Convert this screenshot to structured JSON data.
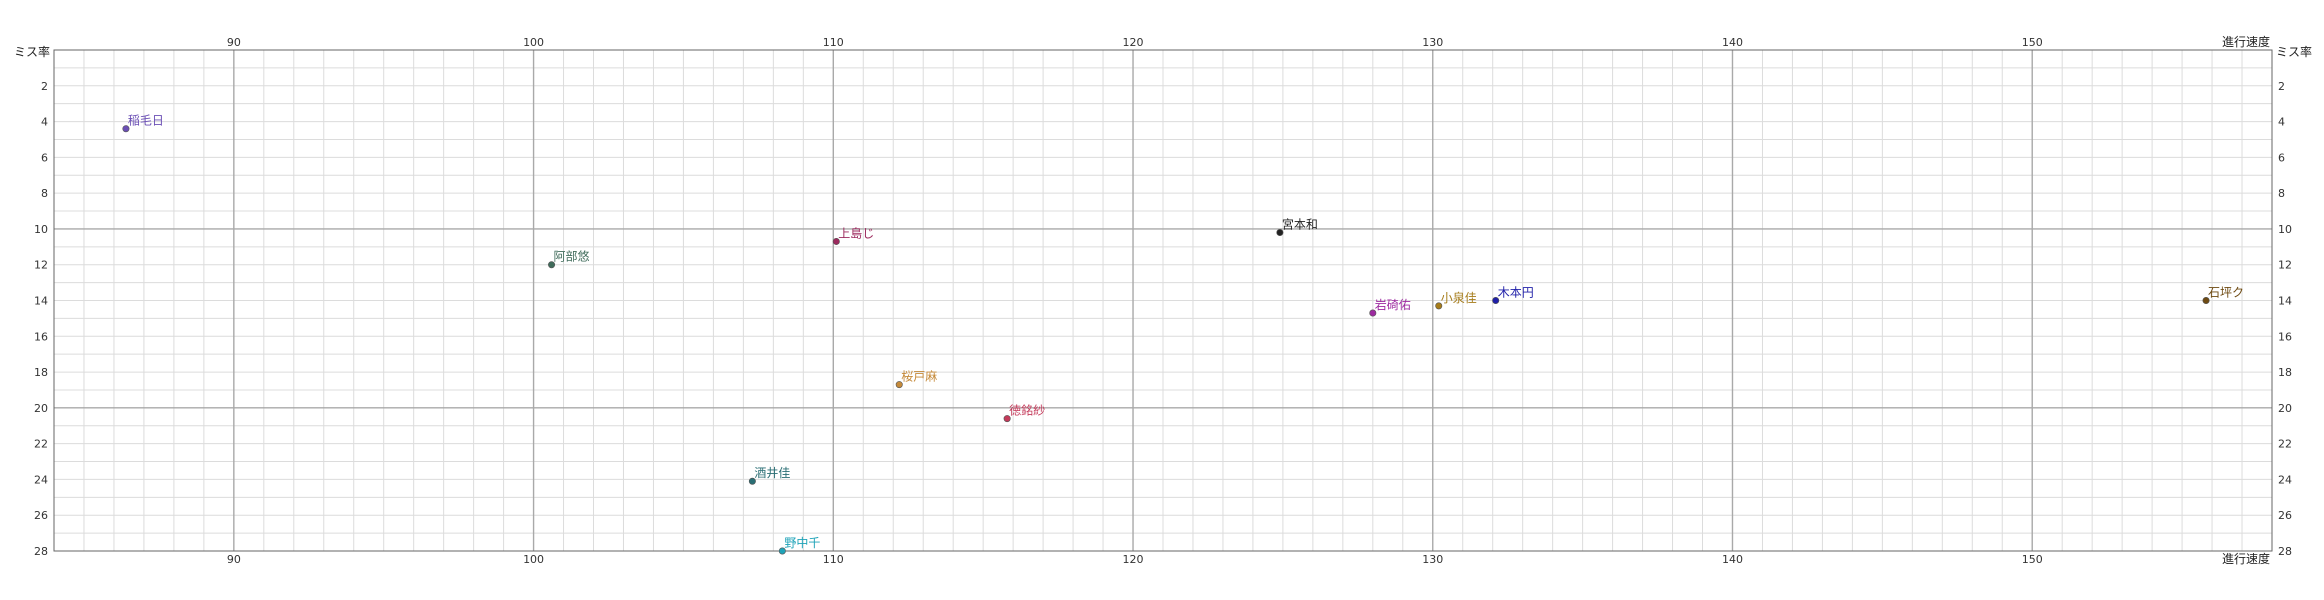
{
  "chart_data": {
    "type": "scatter",
    "x_axis_label": "進行速度",
    "y_axis_label": "ミス率",
    "xlim": [
      84,
      158
    ],
    "ylim": [
      0,
      28
    ],
    "y_inverted": true,
    "x_ticks": [
      90,
      100,
      110,
      120,
      130,
      140,
      150
    ],
    "y_ticks": [
      2,
      4,
      6,
      8,
      10,
      12,
      14,
      16,
      18,
      20,
      22,
      24,
      26,
      28
    ],
    "grid": true,
    "points": [
      {
        "label": "稲毛日",
        "x": 86.4,
        "y": 4.4,
        "color": "#6b4fb5"
      },
      {
        "label": "阿部悠",
        "x": 100.6,
        "y": 12.0,
        "color": "#3f6b5a"
      },
      {
        "label": "上島じ",
        "x": 110.1,
        "y": 10.7,
        "color": "#9c2a5e"
      },
      {
        "label": "宮本和",
        "x": 124.9,
        "y": 10.2,
        "color": "#222222"
      },
      {
        "label": "岩碕佑",
        "x": 128.0,
        "y": 14.7,
        "color": "#9d2aa0"
      },
      {
        "label": "小泉佳",
        "x": 130.2,
        "y": 14.3,
        "color": "#a67c1a"
      },
      {
        "label": "木本円",
        "x": 132.1,
        "y": 14.0,
        "color": "#1f1fa8"
      },
      {
        "label": "石坪ク",
        "x": 155.8,
        "y": 14.0,
        "color": "#6e4a12"
      },
      {
        "label": "桜戸麻",
        "x": 112.2,
        "y": 18.7,
        "color": "#c58a3a"
      },
      {
        "label": "徳銘紗",
        "x": 115.8,
        "y": 20.6,
        "color": "#c43a5a"
      },
      {
        "label": "酒井佳",
        "x": 107.3,
        "y": 24.1,
        "color": "#2a6e74"
      },
      {
        "label": "野中千",
        "x": 108.3,
        "y": 28.0,
        "color": "#1fa3b8"
      }
    ]
  }
}
